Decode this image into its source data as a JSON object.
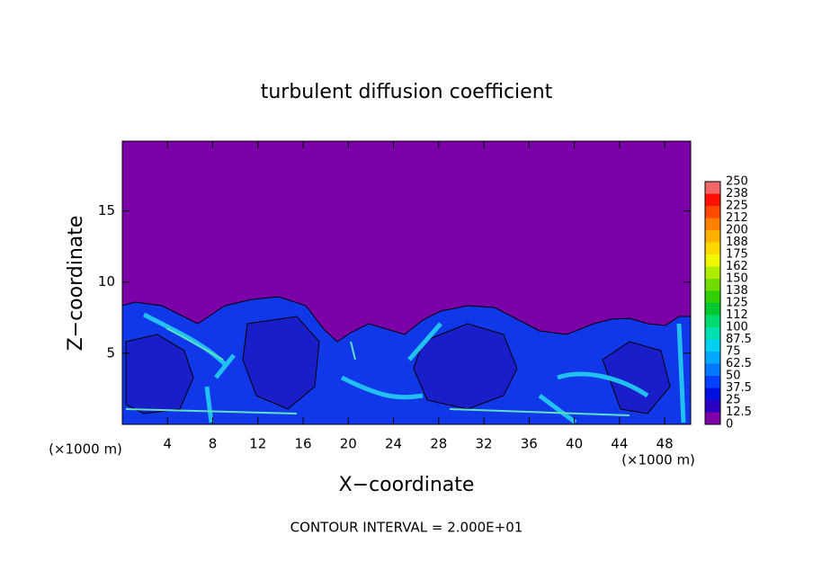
{
  "chart_data": {
    "type": "contour",
    "title": "turbulent diffusion coefficient",
    "x_label": "X−coordinate",
    "y_label": "Z−coordinate",
    "x_unit": "(×1000 m)",
    "y_unit": "(×1000 m)",
    "note": "CONTOUR INTERVAL = 2.000E+01",
    "xlim": [
      0,
      50.3
    ],
    "ylim": [
      0,
      19.9
    ],
    "xticks": [
      4,
      8,
      12,
      16,
      20,
      24,
      28,
      32,
      36,
      40,
      44,
      48
    ],
    "yticks": [
      5,
      10,
      15
    ],
    "colorbar": {
      "levels": [
        0,
        12.5,
        25,
        37.5,
        50,
        62.5,
        75,
        87.5,
        100,
        112,
        125,
        138,
        150,
        162,
        175,
        188,
        200,
        212,
        225,
        238,
        250
      ],
      "colors": [
        "#8000a8",
        "#2800c0",
        "#0010e0",
        "#0040ff",
        "#0078ff",
        "#00a8ff",
        "#00d0f0",
        "#00e0b0",
        "#00d870",
        "#00c830",
        "#30d000",
        "#70dc00",
        "#b0ec00",
        "#f0f800",
        "#ffd800",
        "#ffb000",
        "#ff8000",
        "#ff4800",
        "#ff1000",
        "#f06868"
      ]
    }
  }
}
